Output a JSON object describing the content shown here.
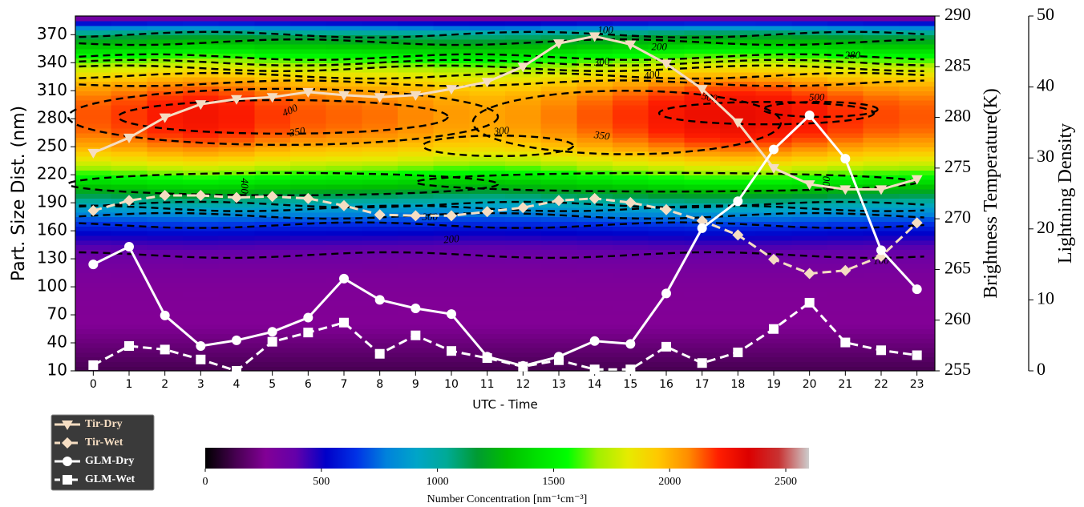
{
  "chart_data": {
    "type": "heatmap",
    "x": {
      "label": "UTC - Time",
      "ticks": [
        0,
        1,
        2,
        3,
        4,
        5,
        6,
        7,
        8,
        9,
        10,
        11,
        12,
        13,
        14,
        15,
        16,
        17,
        18,
        19,
        20,
        21,
        22,
        23
      ],
      "range": [
        -0.5,
        23.5
      ]
    },
    "y_left": {
      "label": "Part. Size Dist. (nm)",
      "ticks": [
        10,
        40,
        70,
        100,
        130,
        160,
        190,
        220,
        250,
        280,
        310,
        340,
        370
      ],
      "range": [
        10,
        390
      ]
    },
    "y_right1": {
      "label": "Brightness Temperature(K)",
      "ticks": [
        255,
        260,
        265,
        270,
        275,
        280,
        285,
        290
      ],
      "range": [
        255,
        290
      ]
    },
    "y_right2": {
      "label": "Lightning Density",
      "ticks": [
        0,
        10,
        20,
        30,
        40,
        50
      ],
      "range": [
        0,
        50
      ]
    },
    "colorbar": {
      "label": "Number Concentration [nm⁻¹cm⁻³]",
      "ticks": [
        0,
        500,
        1000,
        1500,
        2000,
        2500
      ],
      "range": [
        0,
        2600
      ],
      "colormap": "nipy_spectral"
    },
    "contour_labels": [
      {
        "text": "400",
        "x": 5.5,
        "y": 288,
        "rot": -25
      },
      {
        "text": "350",
        "x": 5.7,
        "y": 265,
        "rot": -10
      },
      {
        "text": "300",
        "x": 11.4,
        "y": 266,
        "rot": -5
      },
      {
        "text": "350",
        "x": 14.2,
        "y": 261,
        "rot": 8
      },
      {
        "text": "500",
        "x": 17.2,
        "y": 302,
        "rot": 12
      },
      {
        "text": "500",
        "x": 20.2,
        "y": 302,
        "rot": 0
      },
      {
        "text": "400",
        "x": 4.2,
        "y": 208,
        "rot": 90
      },
      {
        "text": "400",
        "x": 20.5,
        "y": 210,
        "rot": -90
      },
      {
        "text": "400",
        "x": 15.6,
        "y": 326,
        "rot": -10
      },
      {
        "text": "300",
        "x": 14.2,
        "y": 340,
        "rot": -5
      },
      {
        "text": "280",
        "x": 21.2,
        "y": 347,
        "rot": 0
      },
      {
        "text": "200",
        "x": 15.8,
        "y": 356,
        "rot": 0
      },
      {
        "text": "100",
        "x": 14.3,
        "y": 374,
        "rot": 0
      },
      {
        "text": "300",
        "x": 9.4,
        "y": 174,
        "rot": 0
      },
      {
        "text": "200",
        "x": 10.0,
        "y": 150,
        "rot": -5
      },
      {
        "text": "100",
        "x": 22.0,
        "y": 127,
        "rot": 0
      }
    ],
    "series": [
      {
        "name": "Tir-Dry",
        "axis": "temperature",
        "color": "#f5ddc2",
        "dash": false,
        "marker": "triangle-down",
        "values": [
          276.5,
          278.0,
          280.0,
          281.3,
          281.8,
          282.0,
          282.5,
          282.2,
          282.0,
          282.2,
          282.8,
          283.5,
          285.0,
          287.3,
          288.0,
          287.2,
          285.3,
          282.8,
          279.5,
          275.0,
          273.4,
          272.9,
          272.9,
          273.9
        ]
      },
      {
        "name": "Tir-Wet",
        "axis": "temperature",
        "color": "#f5ddc2",
        "dash": true,
        "marker": "diamond",
        "values": [
          270.8,
          271.8,
          272.3,
          272.3,
          272.1,
          272.2,
          272.0,
          271.3,
          270.4,
          270.3,
          270.3,
          270.7,
          271.1,
          271.8,
          272.0,
          271.6,
          270.9,
          269.8,
          268.4,
          266.0,
          264.6,
          264.9,
          266.3,
          269.6
        ]
      },
      {
        "name": "GLM-Dry",
        "axis": "lightning",
        "color": "#ffffff",
        "dash": false,
        "marker": "circle",
        "values": [
          15.0,
          17.5,
          7.8,
          3.5,
          4.3,
          5.5,
          7.5,
          13.0,
          10.0,
          8.8,
          8.0,
          2.0,
          0.7,
          2.0,
          4.2,
          3.8,
          10.9,
          20.1,
          23.9,
          31.2,
          36.0,
          29.9,
          17.0,
          11.5
        ]
      },
      {
        "name": "GLM-Wet",
        "axis": "lightning",
        "color": "#ffffff",
        "dash": true,
        "marker": "square",
        "values": [
          0.8,
          3.5,
          3.0,
          1.6,
          0.0,
          4.1,
          5.4,
          6.8,
          2.4,
          5.0,
          2.8,
          1.8,
          0.6,
          1.5,
          0.2,
          0.2,
          3.4,
          1.1,
          2.6,
          5.9,
          9.6,
          4.0,
          2.9,
          2.2
        ]
      }
    ],
    "legend": {
      "position": "bottom-left",
      "entries": [
        "Tir-Dry",
        "Tir-Wet",
        "GLM-Dry",
        "GLM-Wet"
      ]
    }
  }
}
